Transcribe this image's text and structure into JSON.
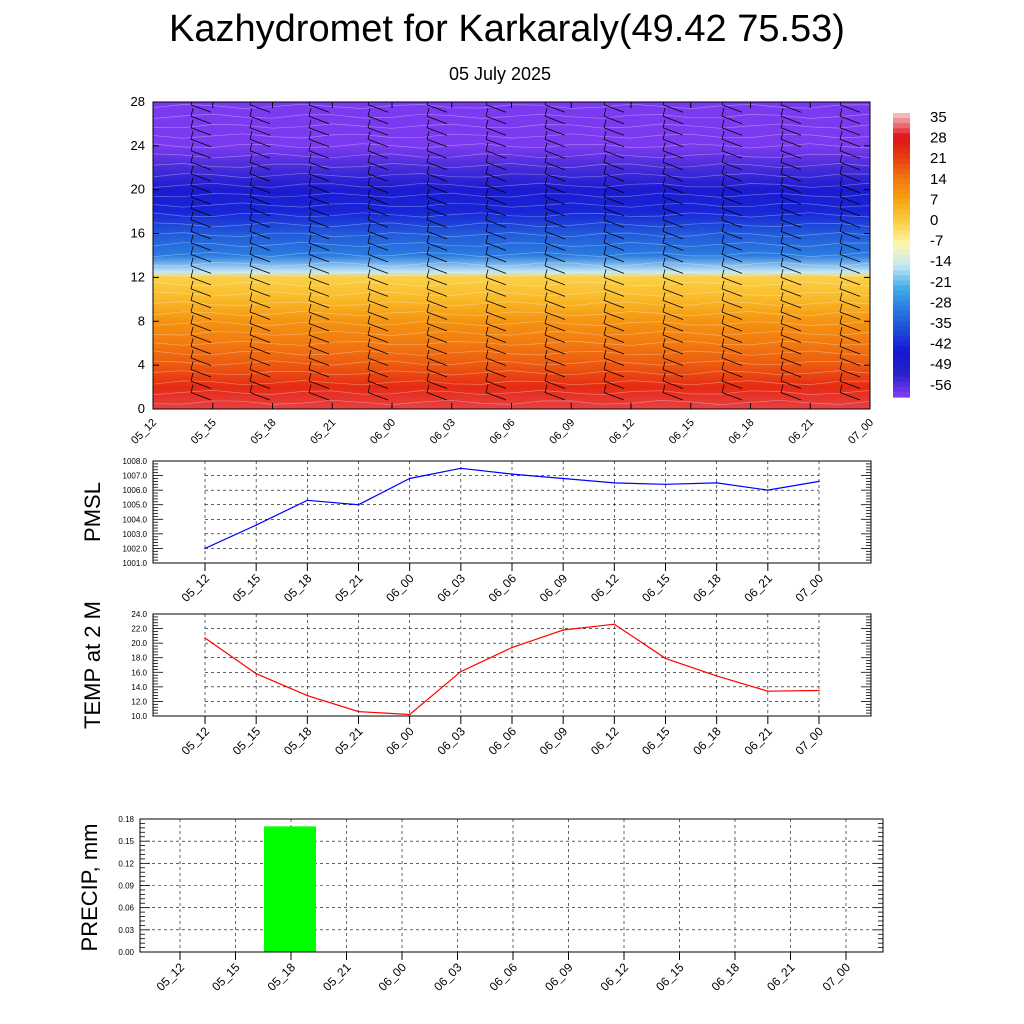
{
  "header": {
    "title": "Kazhydromet for Karkaraly(49.42 75.53)",
    "subtitle": "05 July 2025"
  },
  "chart_data": [
    {
      "type": "heatmap",
      "title": "",
      "xlabel": "",
      "ylabel": "",
      "x_categories": [
        "05_12",
        "05_15",
        "05_18",
        "05_21",
        "06_00",
        "06_03",
        "06_06",
        "06_09",
        "06_12",
        "06_15",
        "06_18",
        "06_21",
        "07_00"
      ],
      "y_ticks": [
        0,
        4,
        8,
        12,
        16,
        20,
        24,
        28
      ],
      "ylim": [
        0,
        28
      ],
      "colorbar_labels": [
        "35",
        "28",
        "21",
        "14",
        "7",
        "0",
        "-7",
        "-14",
        "-21",
        "-28",
        "-35",
        "-42",
        "-49",
        "-56"
      ],
      "colorbar_colors": [
        "#f4b8bc",
        "#e01018",
        "#e84010",
        "#f27a10",
        "#f7a812",
        "#fbd046",
        "#fff7b0",
        "#c4e8f4",
        "#42b0e8",
        "#2a7ce0",
        "#1e4cd8",
        "#1616d6",
        "#2222c8",
        "#7b3af0"
      ],
      "temperature_profile": {
        "heights": [
          0,
          2,
          4,
          6,
          8,
          10,
          12,
          12.5,
          14,
          16,
          18,
          20,
          22,
          24,
          26,
          28
        ],
        "values": [
          30,
          24,
          18,
          14,
          10,
          4,
          0,
          -14,
          -28,
          -33,
          -40,
          -45,
          -52,
          -56,
          -58,
          -59
        ]
      },
      "wind_barbs": true
    },
    {
      "type": "line",
      "ylabel": "PMSL",
      "categories": [
        "05_12",
        "05_15",
        "05_18",
        "05_21",
        "06_00",
        "06_03",
        "06_06",
        "06_09",
        "06_12",
        "06_15",
        "06_18",
        "06_21",
        "07_00"
      ],
      "y_tick_labels": [
        "1001.0",
        "1002.0",
        "1003.0",
        "1004.0",
        "1005.0",
        "1006.0",
        "1007.0",
        "1008.0"
      ],
      "ylim": [
        1001,
        1008
      ],
      "series": [
        {
          "color": "#0000ff",
          "values": [
            1002.0,
            1003.6,
            1005.3,
            1005.0,
            1006.8,
            1007.5,
            1007.1,
            1006.8,
            1006.5,
            1006.4,
            1006.5,
            1006.0,
            1006.6
          ]
        }
      ],
      "grid": true
    },
    {
      "type": "line",
      "ylabel": "TEMP at 2 M",
      "categories": [
        "05_12",
        "05_15",
        "05_18",
        "05_21",
        "06_00",
        "06_03",
        "06_06",
        "06_09",
        "06_12",
        "06_15",
        "06_18",
        "06_21",
        "07_00"
      ],
      "y_tick_labels": [
        "10.0",
        "12.0",
        "14.0",
        "16.0",
        "18.0",
        "20.0",
        "22.0",
        "24.0"
      ],
      "ylim": [
        10,
        24
      ],
      "series": [
        {
          "color": "#ff0000",
          "values": [
            20.7,
            15.8,
            12.8,
            10.6,
            10.2,
            16.1,
            19.4,
            21.8,
            22.6,
            17.9,
            15.5,
            13.4,
            13.5
          ]
        }
      ],
      "grid": true
    },
    {
      "type": "bar",
      "ylabel": "PRECIP, mm",
      "categories": [
        "05_12",
        "05_15",
        "05_18",
        "05_21",
        "06_00",
        "06_03",
        "06_06",
        "06_09",
        "06_12",
        "06_15",
        "06_18",
        "06_21",
        "07_00"
      ],
      "y_tick_labels": [
        "0.00",
        "0.03",
        "0.06",
        "0.09",
        "0.12",
        "0.15",
        "0.18"
      ],
      "ylim": [
        0,
        0.18
      ],
      "bar_color": "#00ff00",
      "values": [
        0,
        0,
        0.17,
        0,
        0,
        0,
        0,
        0,
        0,
        0,
        0,
        0,
        0
      ],
      "grid": true
    }
  ]
}
